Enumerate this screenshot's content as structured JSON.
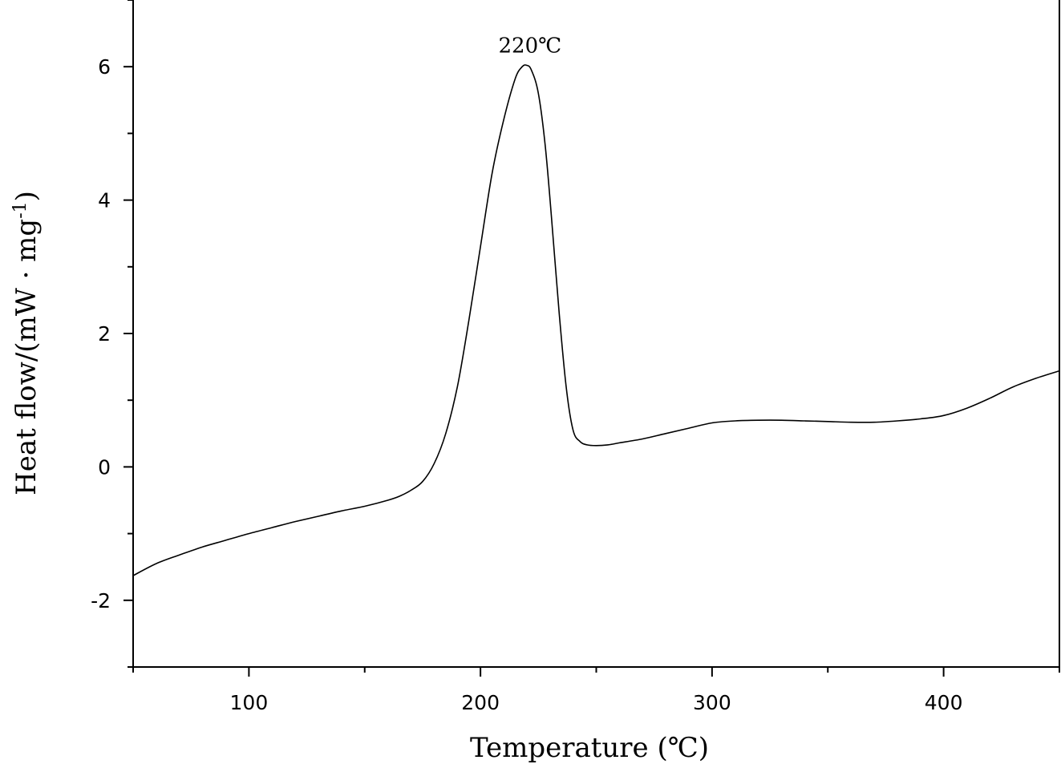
{
  "chart_data": {
    "type": "line",
    "xlabel": "Temperature (℃)",
    "ylabel": "Heat flow/(mW · mg",
    "ylabel_sup": "-1",
    "ylabel_close": ")",
    "xlim": [
      50,
      450
    ],
    "ylim": [
      -3,
      7
    ],
    "xticks_major": [
      100,
      200,
      300,
      400
    ],
    "xticks_minor": [
      50,
      150,
      250,
      350,
      450
    ],
    "yticks_major": [
      -2,
      0,
      2,
      4,
      6
    ],
    "yticks_minor": [
      -3,
      -1,
      1,
      3,
      5,
      7
    ],
    "annotation": {
      "text": "220℃",
      "x": 220,
      "y": 6.02
    },
    "series": [
      {
        "x": [
          50,
          60,
          70,
          80,
          90,
          100,
          110,
          120,
          130,
          140,
          150,
          160,
          165,
          170,
          175,
          180,
          185,
          190,
          195,
          200,
          205,
          210,
          215,
          218,
          220,
          222,
          225,
          228,
          231,
          234,
          237,
          240,
          243,
          246,
          250,
          255,
          260,
          270,
          280,
          290,
          300,
          310,
          320,
          330,
          340,
          350,
          360,
          370,
          380,
          390,
          400,
          410,
          420,
          430,
          440,
          450
        ],
        "y": [
          -1.63,
          -1.45,
          -1.32,
          -1.2,
          -1.1,
          -1.0,
          -0.91,
          -0.82,
          -0.74,
          -0.66,
          -0.59,
          -0.5,
          -0.44,
          -0.35,
          -0.22,
          0.05,
          0.5,
          1.2,
          2.2,
          3.3,
          4.4,
          5.2,
          5.82,
          6.0,
          6.02,
          5.95,
          5.6,
          4.8,
          3.6,
          2.3,
          1.2,
          0.55,
          0.38,
          0.33,
          0.32,
          0.33,
          0.36,
          0.42,
          0.5,
          0.58,
          0.66,
          0.69,
          0.7,
          0.7,
          0.69,
          0.68,
          0.67,
          0.67,
          0.69,
          0.72,
          0.77,
          0.88,
          1.03,
          1.2,
          1.33,
          1.44
        ]
      }
    ]
  }
}
